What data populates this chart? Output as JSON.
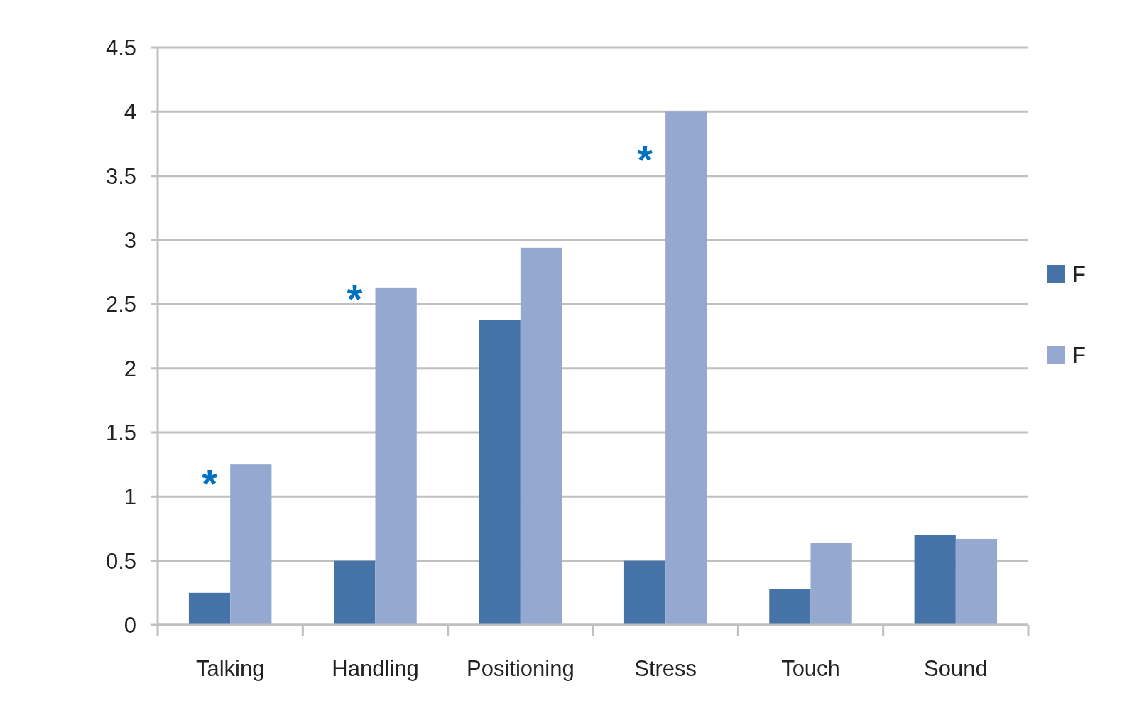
{
  "chart_data": {
    "type": "bar",
    "categories": [
      "Talking",
      "Handling",
      "Positioning",
      "Stress",
      "Touch",
      "Sound"
    ],
    "series": [
      {
        "name": "F",
        "color": "#4573a7",
        "values": [
          0.25,
          0.5,
          2.38,
          0.5,
          0.28,
          0.7
        ]
      },
      {
        "name": "F",
        "color": "#95a9d0",
        "values": [
          1.25,
          2.63,
          2.94,
          4.0,
          0.64,
          0.67
        ]
      }
    ],
    "ylim": [
      0,
      4.5
    ],
    "yticks": [
      0,
      0.5,
      1,
      1.5,
      2,
      2.5,
      3,
      3.5,
      4,
      4.5
    ],
    "grid": "y",
    "legend": "right",
    "annotations": [
      {
        "text": "*",
        "x": "Talking",
        "y": 1.19
      },
      {
        "text": "*",
        "x": "Handling",
        "y": 2.63
      },
      {
        "text": "*",
        "x": "Stress",
        "y": 3.71
      }
    ]
  }
}
